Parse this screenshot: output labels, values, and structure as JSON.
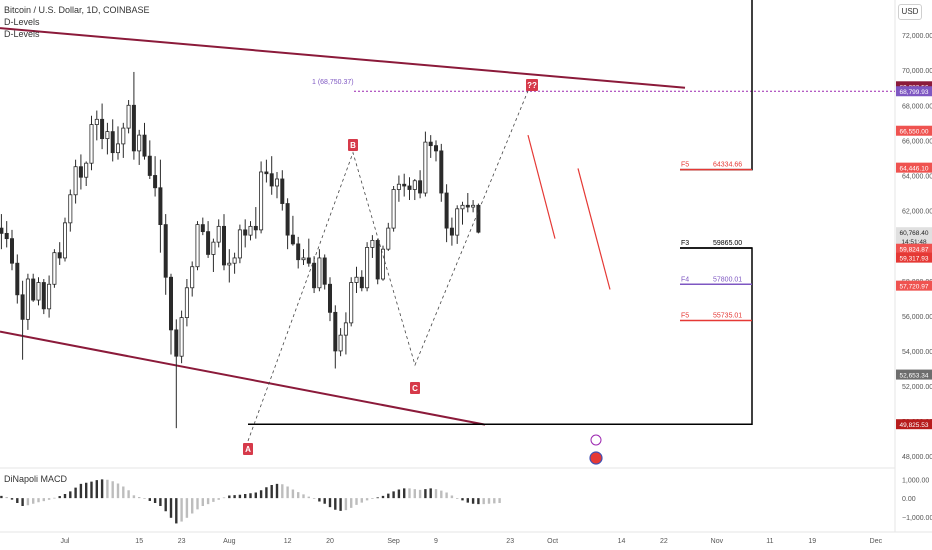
{
  "header": {
    "symbol_line": "Bitcoin / U.S. Dollar, 1D, COINBASE",
    "indicator_1": "D-Levels",
    "indicator_2": "D-Levels",
    "macd_label": "DiNapoli MACD",
    "currency": "USD"
  },
  "colors": {
    "bull": "#26a69a",
    "bear": "#ef5350",
    "candle": "#2a2a2a",
    "channel": "#8b1a3a",
    "marker": "#d63a4a",
    "dotted": "#9c27b0",
    "last_price": "#e53935"
  },
  "chart_data": {
    "type": "candlestick",
    "title": "Bitcoin / U.S. Dollar, 1D, COINBASE",
    "y_range": [
      47500,
      74000
    ],
    "price_ticks": [
      "72,000.00",
      "70,000.00",
      "68,000.00",
      "66,000.00",
      "64,000.00",
      "62,000.00",
      "58,000.00",
      "56,000.00",
      "54,000.00",
      "52,000.00",
      "50,000.00",
      "48,000.00"
    ],
    "date_ticks": [
      {
        "label": "Jul",
        "day": 0
      },
      {
        "label": "15",
        "day": 14
      },
      {
        "label": "23",
        "day": 22
      },
      {
        "label": "Aug",
        "day": 31
      },
      {
        "label": "12",
        "day": 42
      },
      {
        "label": "20",
        "day": 50
      },
      {
        "label": "Sep",
        "day": 62
      },
      {
        "label": "9",
        "day": 70
      },
      {
        "label": "23",
        "day": 84
      },
      {
        "label": "Oct",
        "day": 92
      },
      {
        "label": "14",
        "day": 105
      },
      {
        "label": "22",
        "day": 113
      },
      {
        "label": "Nov",
        "day": 123
      },
      {
        "label": "11",
        "day": 133
      },
      {
        "label": "19",
        "day": 141
      },
      {
        "label": "Dec",
        "day": 153
      }
    ],
    "price_badges": [
      {
        "value": "69,082.56",
        "color": "#8b1a3a"
      },
      {
        "value": "68,799.93",
        "color": "#7e57c2"
      },
      {
        "value": "66,550.00",
        "color": "#ef5350"
      },
      {
        "value": "64,446.10",
        "color": "#ef5350"
      },
      {
        "value": "60,768.40",
        "color": "#e0e0e0"
      },
      {
        "value": "14:51:48",
        "color": "#e0e0e0"
      },
      {
        "value": "59,824.87",
        "color": "#ef5350"
      },
      {
        "value": "59,317.93",
        "color": "#e53935"
      },
      {
        "value": "57,720.97",
        "color": "#ef5350"
      },
      {
        "value": "52,653.34",
        "color": "#6d6d6d"
      },
      {
        "value": "49,825.53",
        "color": "#b71c1c"
      }
    ],
    "candles": [
      [
        61000,
        61800,
        59800,
        60700
      ],
      [
        60700,
        61400,
        59900,
        60400
      ],
      [
        60400,
        60900,
        58600,
        59000
      ],
      [
        59000,
        59500,
        56700,
        57200
      ],
      [
        57200,
        58000,
        53500,
        55800
      ],
      [
        55800,
        58400,
        55200,
        58100
      ],
      [
        58100,
        58400,
        56800,
        56900
      ],
      [
        56900,
        58200,
        56600,
        57900
      ],
      [
        57900,
        58100,
        56100,
        56400
      ],
      [
        56400,
        58300,
        55900,
        57800
      ],
      [
        57800,
        59800,
        57600,
        59600
      ],
      [
        59600,
        60200,
        58900,
        59300
      ],
      [
        59300,
        61600,
        59100,
        61300
      ],
      [
        61300,
        63200,
        60800,
        62900
      ],
      [
        62900,
        64900,
        62400,
        64500
      ],
      [
        64500,
        65200,
        63200,
        63900
      ],
      [
        63900,
        64800,
        63400,
        64700
      ],
      [
        64700,
        67400,
        64300,
        66900
      ],
      [
        66900,
        67700,
        66000,
        67200
      ],
      [
        67200,
        68100,
        65500,
        66100
      ],
      [
        66100,
        67000,
        65200,
        66500
      ],
      [
        66500,
        67200,
        64800,
        65300
      ],
      [
        65300,
        66800,
        64900,
        65800
      ],
      [
        65800,
        67000,
        65000,
        66700
      ],
      [
        66700,
        68300,
        66400,
        68000
      ],
      [
        68000,
        69900,
        64900,
        65400
      ],
      [
        65400,
        66600,
        64600,
        66300
      ],
      [
        66300,
        67000,
        64900,
        65100
      ],
      [
        65100,
        66000,
        63800,
        64000
      ],
      [
        64000,
        65100,
        62800,
        63300
      ],
      [
        63300,
        64900,
        59600,
        61200
      ],
      [
        61200,
        61800,
        57200,
        58200
      ],
      [
        58200,
        58400,
        53800,
        55200
      ],
      [
        55200,
        55800,
        49600,
        53700
      ],
      [
        53700,
        56300,
        53300,
        55900
      ],
      [
        55900,
        58100,
        55400,
        57600
      ],
      [
        57600,
        59100,
        57100,
        58800
      ],
      [
        58800,
        61400,
        58600,
        61200
      ],
      [
        61200,
        61600,
        60600,
        60800
      ],
      [
        60800,
        61400,
        59300,
        59500
      ],
      [
        59500,
        60400,
        58500,
        60200
      ],
      [
        60200,
        61500,
        59900,
        61100
      ],
      [
        61100,
        61800,
        58600,
        58900
      ],
      [
        58900,
        59800,
        57900,
        59000
      ],
      [
        59000,
        59600,
        58400,
        59300
      ],
      [
        59300,
        61200,
        59000,
        60900
      ],
      [
        60900,
        61500,
        59900,
        60600
      ],
      [
        60600,
        61400,
        60300,
        61100
      ],
      [
        61100,
        62200,
        60400,
        60900
      ],
      [
        60900,
        64800,
        60700,
        64200
      ],
      [
        64200,
        64900,
        63600,
        64100
      ],
      [
        64100,
        65100,
        62900,
        63400
      ],
      [
        63400,
        64200,
        62700,
        63800
      ],
      [
        63800,
        64300,
        62000,
        62400
      ],
      [
        62400,
        62700,
        59800,
        60600
      ],
      [
        60600,
        61700,
        60000,
        60100
      ],
      [
        60100,
        60500,
        58700,
        59200
      ],
      [
        59200,
        59800,
        58900,
        59300
      ],
      [
        59300,
        60400,
        58800,
        59000
      ],
      [
        59000,
        59400,
        57300,
        57600
      ],
      [
        57600,
        59800,
        57400,
        59300
      ],
      [
        59300,
        59500,
        57500,
        57800
      ],
      [
        57800,
        58200,
        55700,
        56200
      ],
      [
        56200,
        56600,
        53000,
        54000
      ],
      [
        54000,
        55300,
        53700,
        54900
      ],
      [
        54900,
        56200,
        53800,
        55600
      ],
      [
        55600,
        58200,
        55400,
        57900
      ],
      [
        57900,
        58800,
        57300,
        58200
      ],
      [
        58200,
        58600,
        57400,
        57600
      ],
      [
        57600,
        60200,
        57400,
        59900
      ],
      [
        59900,
        60600,
        59300,
        60300
      ],
      [
        60300,
        60400,
        57800,
        58100
      ],
      [
        58100,
        60000,
        58000,
        59800
      ],
      [
        59800,
        61300,
        59700,
        61000
      ],
      [
        61000,
        63400,
        60800,
        63200
      ],
      [
        63200,
        64000,
        62500,
        63500
      ],
      [
        63500,
        64100,
        62800,
        63400
      ],
      [
        63400,
        63900,
        62600,
        63200
      ],
      [
        63200,
        63800,
        62600,
        63700
      ],
      [
        63700,
        64300,
        62700,
        63000
      ],
      [
        63000,
        66500,
        62800,
        65900
      ],
      [
        65900,
        66300,
        65000,
        65700
      ],
      [
        65700,
        66000,
        64800,
        65400
      ],
      [
        65400,
        65800,
        62500,
        63000
      ],
      [
        63000,
        63500,
        60200,
        61000
      ],
      [
        61000,
        61600,
        60000,
        60600
      ],
      [
        60600,
        62300,
        60100,
        62100
      ],
      [
        62100,
        62500,
        61200,
        62300
      ],
      [
        62300,
        63000,
        61900,
        62200
      ],
      [
        62200,
        62600,
        61900,
        62300
      ],
      [
        62300,
        62400,
        60700,
        60768
      ]
    ],
    "macd_axis": [
      "1,000.00",
      "0.00",
      "−1,000.00"
    ],
    "macd_range": [
      -1700,
      1500
    ],
    "macd": [
      120,
      60,
      -80,
      -260,
      -420,
      -380,
      -300,
      -220,
      -160,
      -90,
      20,
      110,
      220,
      360,
      560,
      760,
      820,
      880,
      960,
      1000,
      980,
      900,
      780,
      620,
      420,
      150,
      60,
      -40,
      -150,
      -260,
      -420,
      -700,
      -1050,
      -1350,
      -1250,
      -1050,
      -820,
      -600,
      -420,
      -320,
      -200,
      -90,
      40,
      140,
      160,
      180,
      220,
      260,
      300,
      420,
      580,
      700,
      760,
      740,
      620,
      460,
      320,
      200,
      80,
      -40,
      -180,
      -300,
      -480,
      -620,
      -680,
      -640,
      -520,
      -360,
      -240,
      -120,
      -20,
      40,
      120,
      240,
      360,
      460,
      520,
      520,
      480,
      440,
      480,
      520,
      480,
      400,
      300,
      140,
      0,
      -120,
      -240,
      -300,
      -320,
      -320,
      -300,
      -280,
      -260
    ],
    "annotations": {
      "title_label": "1 (68,750.37)",
      "point_A": "A",
      "point_B": "B",
      "point_C": "C",
      "point_Q": "??",
      "F5_upper": "F5",
      "F5_upper_value": "64334.66",
      "F3": "F3",
      "F3_value": "59865.00",
      "F4": "F4",
      "F4_value": "57800.01",
      "F5_lower": "F5",
      "F5_lower_value": "55735.01"
    }
  }
}
